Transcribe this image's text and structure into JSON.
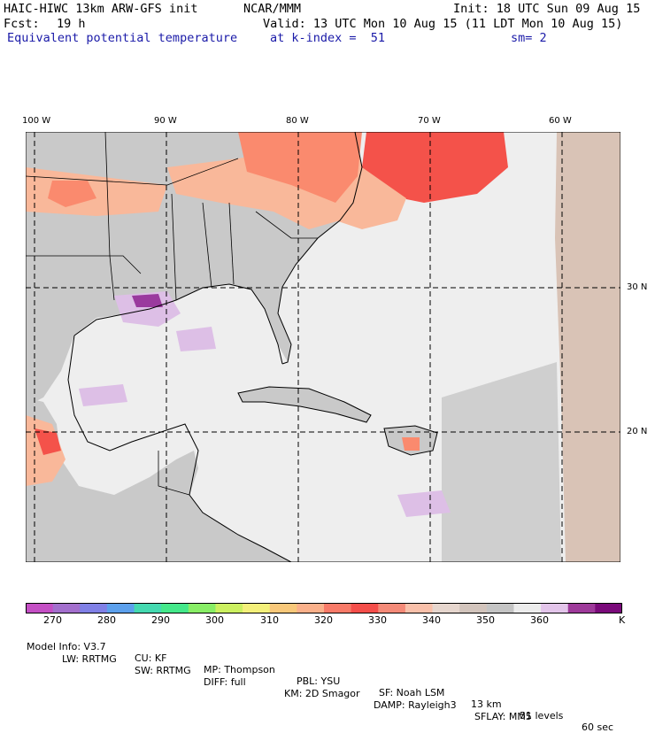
{
  "header": {
    "model_title": "HAIC-HIWC 13km ARW-GFS init",
    "org": "NCAR/MMM",
    "init": "Init: 18 UTC Sun 09 Aug 15",
    "fcst_label": "Fcst:",
    "fcst_value": "19 h",
    "valid": "Valid: 13 UTC Mon 10 Aug 15 (11 LDT Mon 10 Aug 15)",
    "field": "Equivalent potential temperature",
    "level": "at k-index =  51",
    "smoothing": "sm= 2"
  },
  "map": {
    "lon_labels": [
      "100 W",
      "90 W",
      "80 W",
      "70 W",
      "60 W"
    ],
    "lat_labels": [
      "30 N",
      "20 N"
    ],
    "colors": {
      "water": "#eeeeee",
      "land": "#c9c9c9",
      "warm_light": "#f9b89a",
      "warm_mid": "#fa8a6e",
      "warm_hot": "#f4524a",
      "tan": "#d9c3b6",
      "lavender": "#ddbfe6",
      "purple": "#9a3a9e",
      "border": "#000000"
    }
  },
  "colorbar": {
    "colors": [
      "#c44fc4",
      "#a36fcd",
      "#8080e6",
      "#5ca0ec",
      "#44d9b0",
      "#44e88a",
      "#88ee66",
      "#ccf060",
      "#f4f07a",
      "#f8c87a",
      "#fab08a",
      "#f87a68",
      "#f44e4a",
      "#f48a78",
      "#f9c0aa",
      "#e6d6ce",
      "#d2c4bc",
      "#c4c4c4",
      "#ececec",
      "#e3c5ea",
      "#9e3a9a",
      "#7a0a7a"
    ],
    "tick_labels": [
      "270",
      "280",
      "290",
      "300",
      "310",
      "320",
      "330",
      "340",
      "350",
      "360"
    ],
    "unit": "K"
  },
  "footer": {
    "line1": [
      "Model Info: V3.7",
      "CU: KF",
      "MP: Thompson",
      "PBL: YSU",
      "SF: Noah LSM",
      "13 km",
      "51 levels",
      "60 sec"
    ],
    "line2": [
      "LW: RRTMG",
      "SW: RRTMG",
      "DIFF: full",
      "KM: 2D Smagor",
      "DAMP: Rayleigh3",
      "SFLAY: MM5"
    ]
  }
}
